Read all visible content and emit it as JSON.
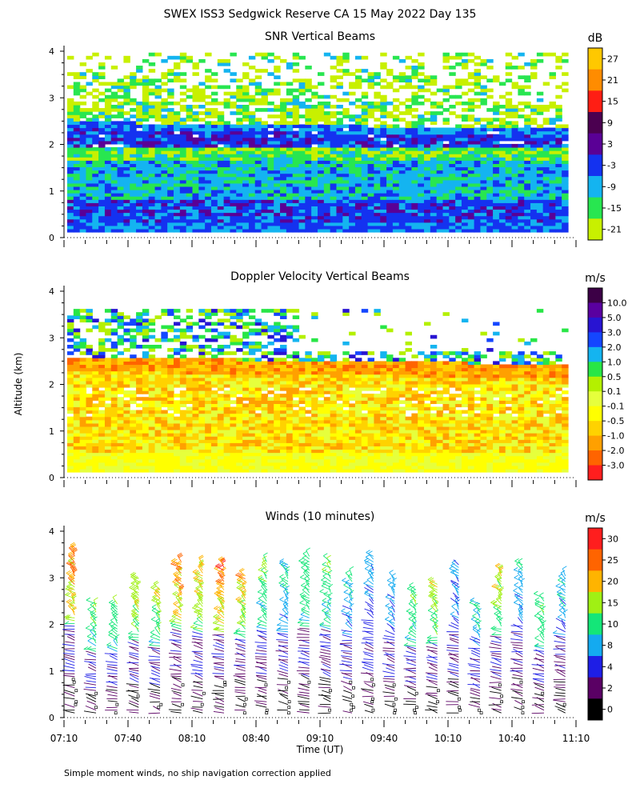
{
  "title": "SWEX ISS3 Sedgwick Reserve CA  15 May 2022 Day 135",
  "footnote": "Simple moment winds, no ship navigation correction applied",
  "xlabel": "Time (UT)",
  "ylabel": "Altitude (km)",
  "x_ticks": [
    "07:10",
    "07:40",
    "08:10",
    "08:40",
    "09:10",
    "09:40",
    "10:10",
    "10:40",
    "11:10"
  ],
  "y_ticks": [
    "0",
    "1",
    "2",
    "3",
    "4"
  ],
  "colors": {
    "snr": [
      "#c8f000",
      "#28e650",
      "#14b4f0",
      "#1432f0",
      "#5a0096",
      "#4b0050",
      "#ff1e14",
      "#ff8c00",
      "#ffc800"
    ],
    "doppler": [
      "#ff1e1e",
      "#ff6400",
      "#ffa000",
      "#ffd200",
      "#ffff00",
      "#e6ff3c",
      "#b4f000",
      "#28e646",
      "#14b4f0",
      "#1446ff",
      "#2814d2",
      "#5a00a0",
      "#3c0046"
    ],
    "winds": [
      "#000000",
      "#5a0064",
      "#1e1ee6",
      "#14aaf0",
      "#14e678",
      "#a0f014",
      "#ffb400",
      "#ff6400",
      "#ff1e1e"
    ]
  },
  "chart_data": [
    {
      "type": "heatmap",
      "title": "SNR Vertical Beams",
      "unit": "dB",
      "x_range": [
        "07:10",
        "11:10"
      ],
      "ylim": [
        0,
        4
      ],
      "colorbar_ticks": [
        "27",
        "21",
        "15",
        "9",
        "3",
        "-3",
        "-9",
        "-15",
        "-21"
      ],
      "description_bands_km": [
        {
          "from": 0.1,
          "to": 0.8,
          "level": "-3 to 3"
        },
        {
          "from": 0.8,
          "to": 1.6,
          "level": "-15 to -3"
        },
        {
          "from": 1.6,
          "to": 1.9,
          "level": "-21 to -9"
        },
        {
          "from": 1.9,
          "to": 2.4,
          "level": "-3 to 9"
        },
        {
          "from": 2.4,
          "to": 3.6,
          "level": "-21 to -15"
        }
      ]
    },
    {
      "type": "heatmap",
      "title": "Doppler Velocity Vertical Beams",
      "unit": "m/s",
      "x_range": [
        "07:10",
        "11:10"
      ],
      "ylim": [
        0,
        4
      ],
      "colorbar_ticks": [
        "10.0",
        "5.0",
        "3.0",
        "2.0",
        "1.0",
        "0.5",
        "0.1",
        "-0.1",
        "-0.5",
        "-1.0",
        "-2.0",
        "-3.0"
      ],
      "description_bands_km": [
        {
          "from": 0.1,
          "to": 0.6,
          "level": "-0.1 to 0.1"
        },
        {
          "from": 0.6,
          "to": 2.5,
          "level": "-1.0 to 0.1"
        },
        {
          "from": 2.5,
          "to": 3.5,
          "level": "0.1 to 2.0"
        }
      ]
    },
    {
      "type": "scatter",
      "title": "Winds (10 minutes)",
      "unit": "m/s",
      "x_range": [
        "07:10",
        "11:10"
      ],
      "ylim": [
        0,
        4
      ],
      "colorbar_ticks": [
        "30",
        "25",
        "20",
        "15",
        "10",
        "8",
        "4",
        "2",
        "0"
      ],
      "profiles": [
        {
          "time": "07:15",
          "top_km": 3.6,
          "max_speed": 30
        },
        {
          "time": "07:25",
          "top_km": 2.5,
          "max_speed": 15
        },
        {
          "time": "07:35",
          "top_km": 2.5,
          "max_speed": 15
        },
        {
          "time": "07:45",
          "top_km": 3.0,
          "max_speed": 25
        },
        {
          "time": "07:55",
          "top_km": 2.8,
          "max_speed": 20
        },
        {
          "time": "08:05",
          "top_km": 3.4,
          "max_speed": 30
        },
        {
          "time": "08:15",
          "top_km": 3.3,
          "max_speed": 25
        },
        {
          "time": "08:25",
          "top_km": 3.3,
          "max_speed": 30
        },
        {
          "time": "08:35",
          "top_km": 3.1,
          "max_speed": 25
        },
        {
          "time": "08:45",
          "top_km": 3.4,
          "max_speed": 15
        },
        {
          "time": "08:55",
          "top_km": 3.3,
          "max_speed": 10
        },
        {
          "time": "09:05",
          "top_km": 3.5,
          "max_speed": 15
        },
        {
          "time": "09:15",
          "top_km": 3.4,
          "max_speed": 15
        },
        {
          "time": "09:25",
          "top_km": 3.1,
          "max_speed": 10
        },
        {
          "time": "09:35",
          "top_km": 3.5,
          "max_speed": 8
        },
        {
          "time": "09:45",
          "top_km": 3.0,
          "max_speed": 8
        },
        {
          "time": "09:55",
          "top_km": 2.8,
          "max_speed": 15
        },
        {
          "time": "10:05",
          "top_km": 2.9,
          "max_speed": 20
        },
        {
          "time": "10:15",
          "top_km": 3.3,
          "max_speed": 8
        },
        {
          "time": "10:25",
          "top_km": 2.5,
          "max_speed": 10
        },
        {
          "time": "10:35",
          "top_km": 3.2,
          "max_speed": 20
        },
        {
          "time": "10:45",
          "top_km": 3.3,
          "max_speed": 10
        },
        {
          "time": "10:55",
          "top_km": 2.6,
          "max_speed": 15
        },
        {
          "time": "11:05",
          "top_km": 3.1,
          "max_speed": 10
        }
      ]
    }
  ]
}
